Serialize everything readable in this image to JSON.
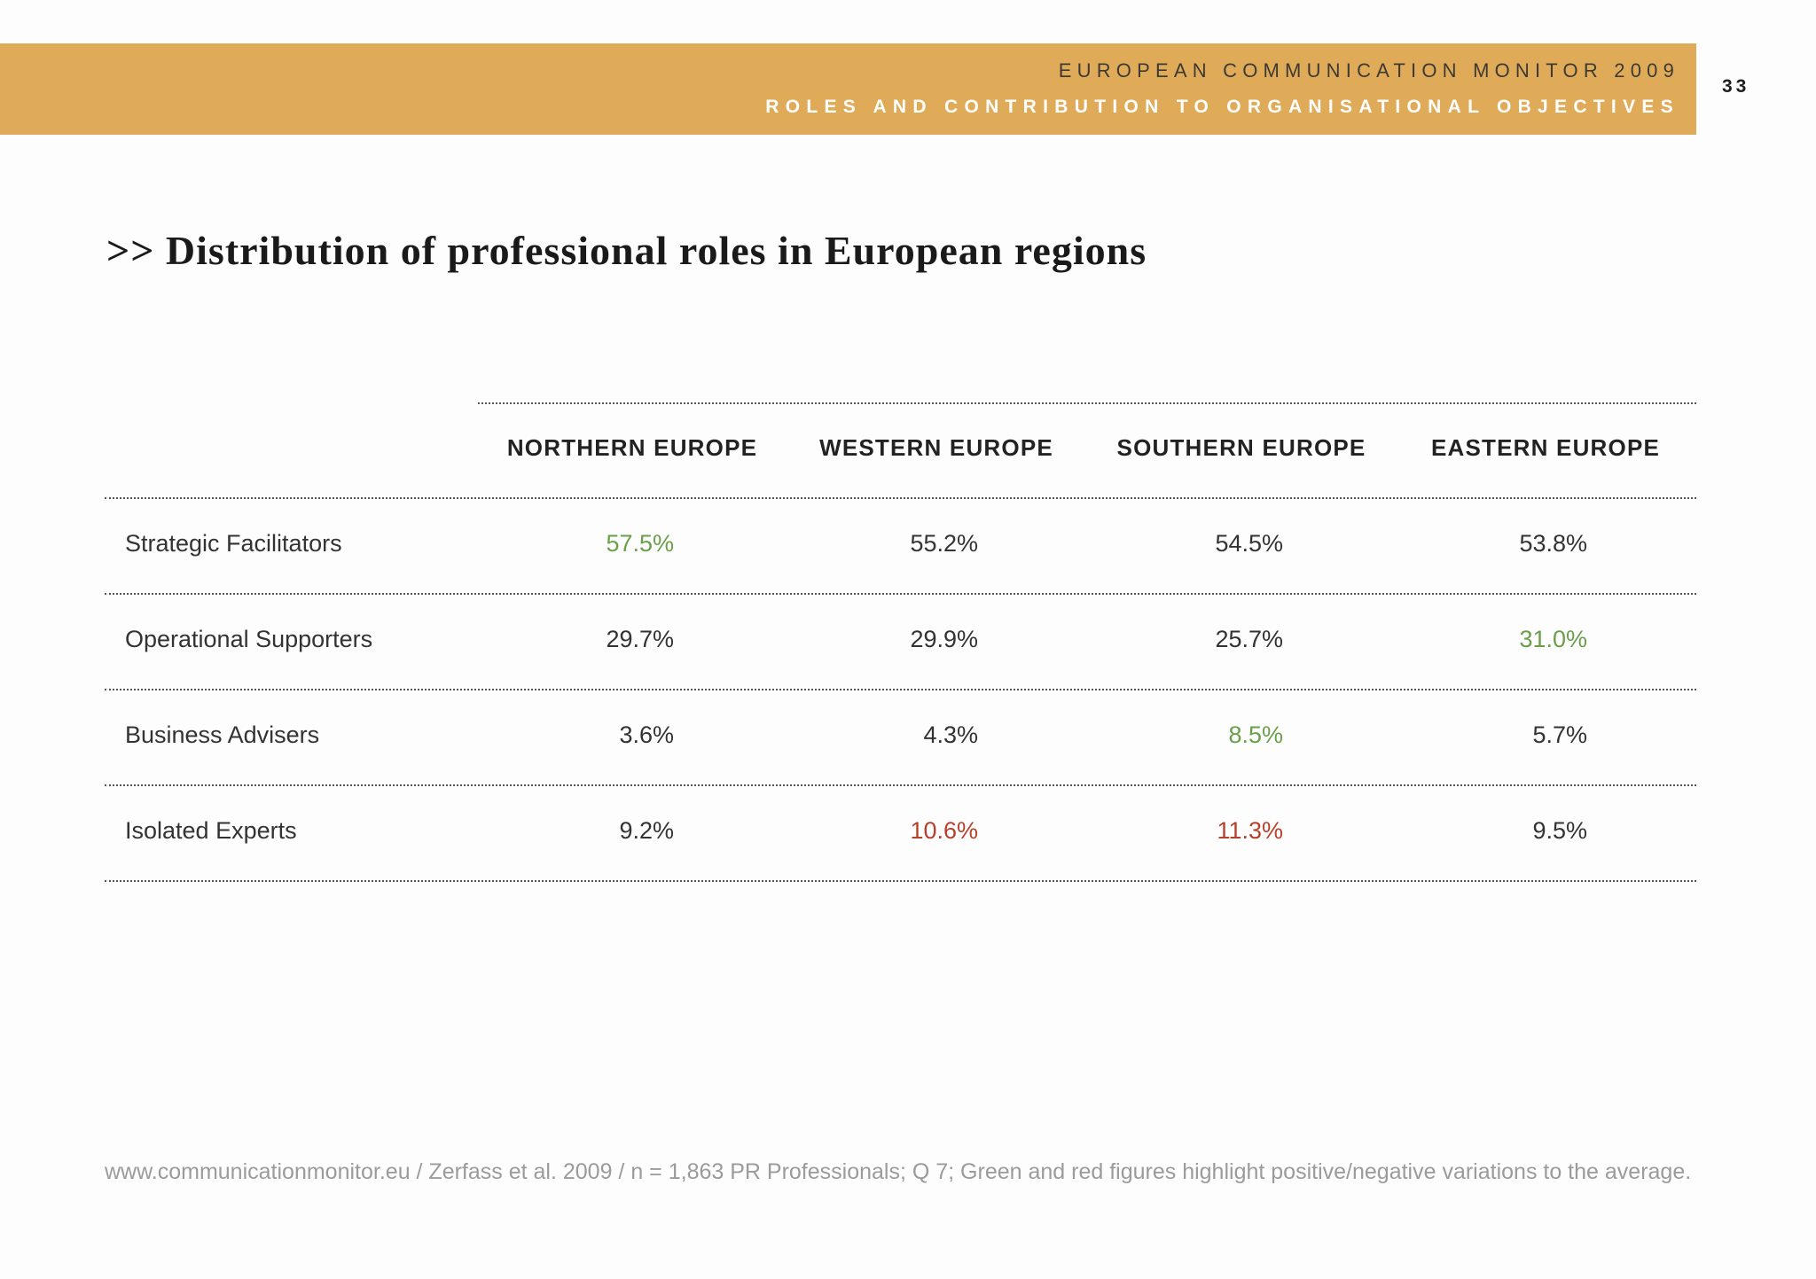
{
  "header": {
    "line1": "EUROPEAN COMMUNICATION MONITOR 2009",
    "line2": "ROLES AND CONTRIBUTION TO ORGANISATIONAL OBJECTIVES",
    "page_number": "33"
  },
  "title": ">> Distribution of professional roles in European regions",
  "footer": "www.communicationmonitor.eu / Zerfass et al. 2009 / n = 1,863 PR Professionals; Q 7; Green and red figures highlight positive/negative variations to the average.",
  "colors": {
    "banner": "#e0ab59",
    "positive": "#6aa04a",
    "negative": "#b8402a",
    "neutral": "#333333"
  },
  "chart_data": {
    "type": "table",
    "columns": [
      "NORTHERN EUROPE",
      "WESTERN EUROPE",
      "SOUTHERN EUROPE",
      "EASTERN EUROPE"
    ],
    "rows": [
      {
        "label": "Strategic Facilitators",
        "values": [
          "57.5%",
          "55.2%",
          "54.5%",
          "53.8%"
        ],
        "highlight": [
          "positive",
          "none",
          "none",
          "none"
        ]
      },
      {
        "label": "Operational Supporters",
        "values": [
          "29.7%",
          "29.9%",
          "25.7%",
          "31.0%"
        ],
        "highlight": [
          "none",
          "none",
          "none",
          "positive"
        ]
      },
      {
        "label": "Business Advisers",
        "values": [
          "3.6%",
          "4.3%",
          "8.5%",
          "5.7%"
        ],
        "highlight": [
          "none",
          "none",
          "positive",
          "none"
        ]
      },
      {
        "label": "Isolated Experts",
        "values": [
          "9.2%",
          "10.6%",
          "11.3%",
          "9.5%"
        ],
        "highlight": [
          "none",
          "negative",
          "negative",
          "none"
        ]
      }
    ]
  }
}
